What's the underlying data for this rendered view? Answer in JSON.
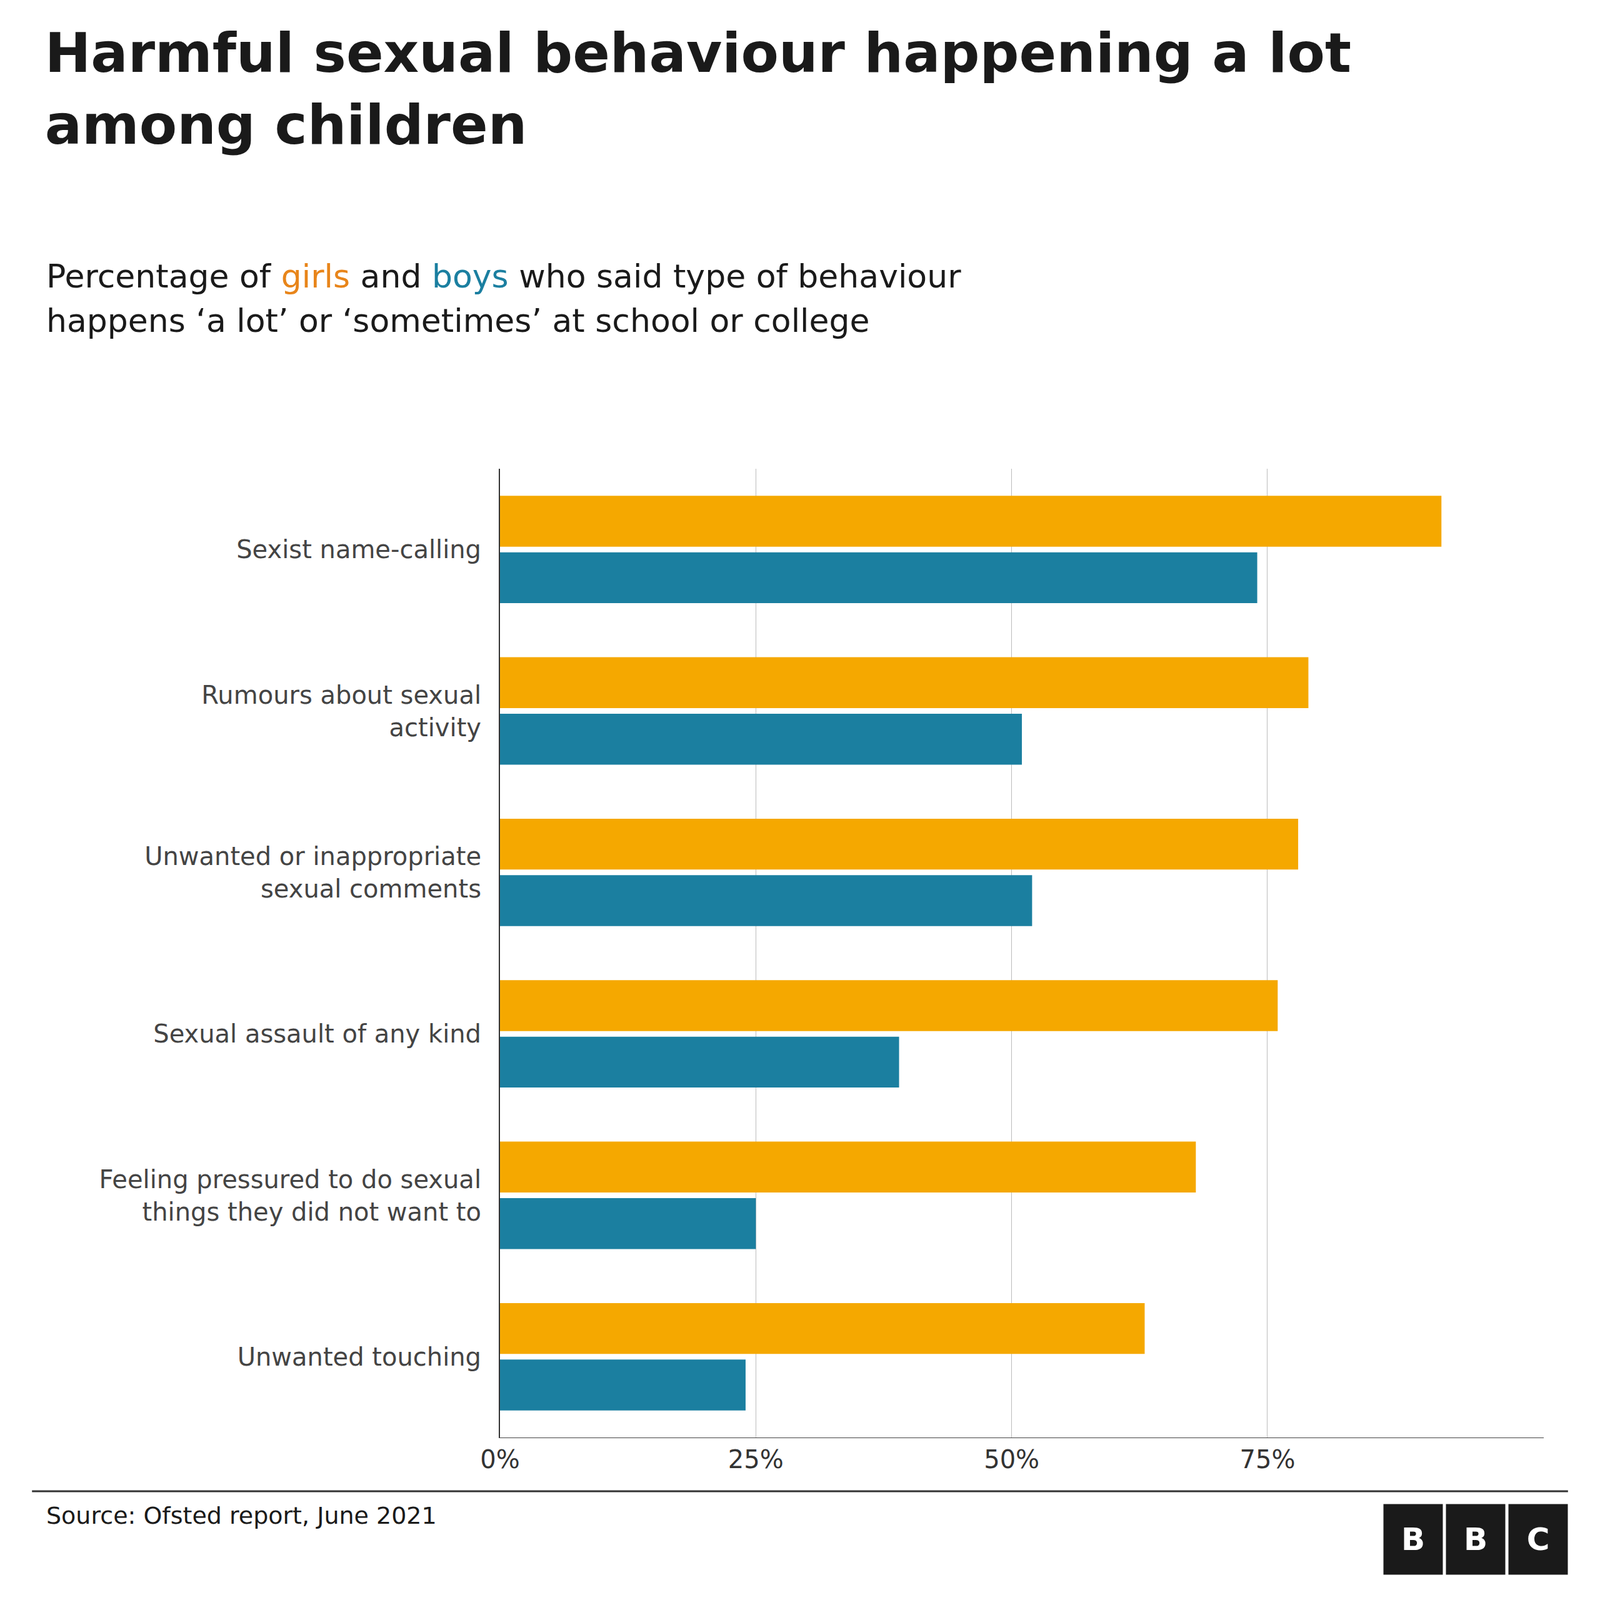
{
  "chart_data": {
    "type": "bar",
    "orientation": "horizontal",
    "title": "Harmful sexual behaviour happening a lot\namong children",
    "subtitle": [
      [
        {
          "text": "Percentage of "
        },
        {
          "text": "girls",
          "color": "#e8851a"
        },
        {
          "text": " and "
        },
        {
          "text": "boys",
          "color": "#1b7fa0"
        },
        {
          "text": " who said type of behaviour"
        }
      ],
      [
        {
          "text": "happens ‘a lot’ or ‘sometimes’ at school or college"
        }
      ]
    ],
    "categories": [
      "Sexist name-calling",
      "Rumours about sexual\nactivity",
      "Unwanted or inappropriate\nsexual comments",
      "Sexual assault of any kind",
      "Feeling pressured to do sexual\nthings they did not want to",
      "Unwanted touching"
    ],
    "series": [
      {
        "color": "#f5a800",
        "values": [
          92,
          79,
          78,
          76,
          68,
          63
        ]
      },
      {
        "color": "#1b7fa0",
        "values": [
          74,
          51,
          52,
          39,
          25,
          24
        ]
      }
    ],
    "xlim": [
      0,
      102
    ],
    "xticks": [
      {
        "value": 0,
        "label": "0%"
      },
      {
        "value": 25,
        "label": "25%"
      },
      {
        "value": 50,
        "label": "50%"
      },
      {
        "value": 75,
        "label": "75%"
      }
    ],
    "grid": true,
    "source": "Source: Ofsted report, June 2021",
    "logo": [
      "B",
      "B",
      "C"
    ]
  }
}
